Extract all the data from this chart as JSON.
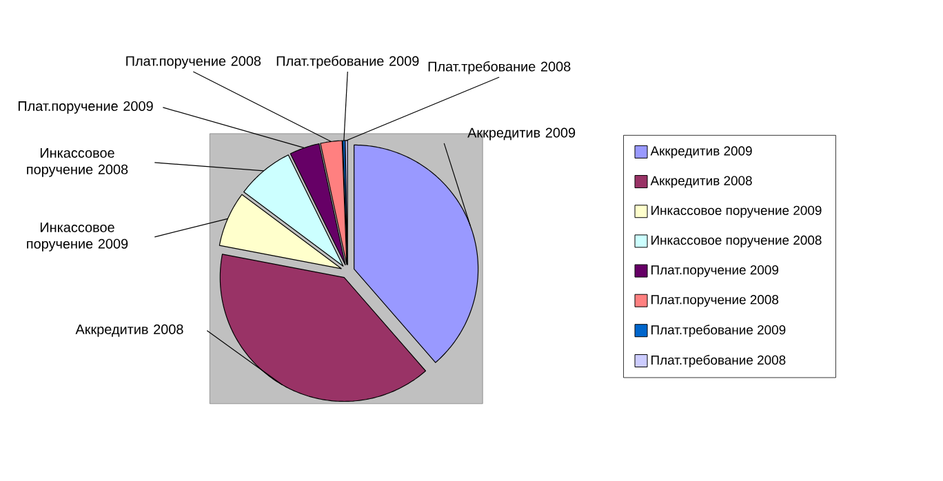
{
  "chart_data": {
    "type": "pie",
    "categories": [
      "Аккредитив 2009",
      "Аккредитив 2008",
      "Инкассовое поручение 2009",
      "Инкассовое поручение 2008",
      "Плат.поручение 2009",
      "Плат.поручение 2008",
      "Плат.требование 2009",
      "Плат.требование 2008"
    ],
    "values": [
      38.6,
      39.4,
      7.2,
      7.5,
      3.9,
      2.8,
      0.3,
      0.3
    ],
    "colors": [
      "#9999ff",
      "#993366",
      "#ffffcc",
      "#ccffff",
      "#660066",
      "#ff8080",
      "#0066cc",
      "#ccccff"
    ],
    "legend": "right"
  }
}
